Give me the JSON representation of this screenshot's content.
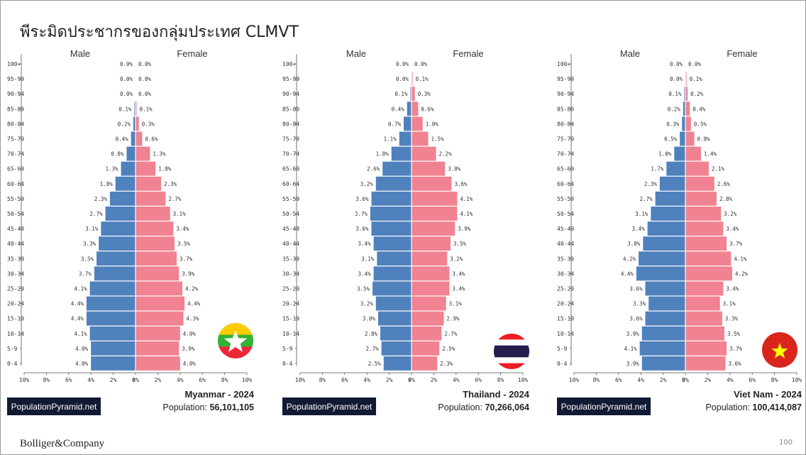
{
  "slide_title": "พีระมิดประชากรของกลุ่มประเทศ CLMVT",
  "footer": {
    "brand": "Bolliger&Company",
    "page_number": "100"
  },
  "colors": {
    "male": "#4f81bd",
    "female": "#f08291"
  },
  "chart_data": [
    {
      "type": "bar",
      "orientation": "horizontal",
      "subtype": "population-pyramid",
      "country": "Myanmar - 2024",
      "population_label": "Population:",
      "population": "56,101,105",
      "watermark": "PopulationPyramid.net",
      "flag": "myanmar-flag-icon",
      "left_label": "Male",
      "right_label": "Female",
      "categories": [
        "100+",
        "95-99",
        "90-94",
        "85-89",
        "80-84",
        "75-79",
        "70-74",
        "65-69",
        "60-64",
        "55-59",
        "50-54",
        "45-49",
        "40-44",
        "35-39",
        "30-34",
        "25-29",
        "20-24",
        "15-19",
        "10-14",
        "5-9",
        "0-4"
      ],
      "series": [
        {
          "name": "Male",
          "values": [
            0.0,
            0.0,
            0.0,
            0.1,
            0.2,
            0.4,
            0.8,
            1.3,
            1.8,
            2.3,
            2.7,
            3.1,
            3.3,
            3.5,
            3.7,
            4.1,
            4.4,
            4.4,
            4.1,
            4.0,
            4.0
          ]
        },
        {
          "name": "Female",
          "values": [
            0.0,
            0.0,
            0.0,
            0.1,
            0.3,
            0.6,
            1.3,
            1.8,
            2.3,
            2.7,
            3.1,
            3.4,
            3.5,
            3.7,
            3.9,
            4.2,
            4.4,
            4.3,
            4.0,
            3.9,
            4.0
          ]
        }
      ],
      "x_ticks": [
        "10%",
        "8%",
        "6%",
        "4%",
        "2%",
        "0%",
        "2%",
        "4%",
        "6%",
        "8%",
        "10%"
      ],
      "xlim": [
        -10,
        10
      ]
    },
    {
      "type": "bar",
      "orientation": "horizontal",
      "subtype": "population-pyramid",
      "country": "Thailand - 2024",
      "population_label": "Population:",
      "population": "70,266,064",
      "watermark": "PopulationPyramid.net",
      "flag": "thailand-flag-icon",
      "left_label": "Male",
      "right_label": "Female",
      "categories": [
        "100+",
        "95-99",
        "90-94",
        "85-89",
        "80-84",
        "75-79",
        "70-74",
        "65-69",
        "60-64",
        "55-59",
        "50-54",
        "45-49",
        "40-44",
        "35-39",
        "30-34",
        "25-29",
        "20-24",
        "15-19",
        "10-14",
        "5-9",
        "0-4"
      ],
      "series": [
        {
          "name": "Male",
          "values": [
            0.0,
            0.0,
            0.1,
            0.4,
            0.7,
            1.1,
            1.8,
            2.6,
            3.2,
            3.6,
            3.7,
            3.6,
            3.4,
            3.1,
            3.4,
            3.5,
            3.2,
            3.0,
            2.8,
            2.7,
            2.5
          ]
        },
        {
          "name": "Female",
          "values": [
            0.0,
            0.1,
            0.3,
            0.6,
            1.0,
            1.5,
            2.2,
            3.0,
            3.6,
            4.1,
            4.1,
            3.9,
            3.5,
            3.2,
            3.4,
            3.4,
            3.1,
            2.9,
            2.7,
            2.5,
            2.3
          ]
        }
      ],
      "x_ticks": [
        "10%",
        "8%",
        "6%",
        "4%",
        "2%",
        "0%",
        "2%",
        "4%",
        "6%",
        "8%",
        "10%"
      ],
      "xlim": [
        -10,
        10
      ]
    },
    {
      "type": "bar",
      "orientation": "horizontal",
      "subtype": "population-pyramid",
      "country": "Viet Nam - 2024",
      "population_label": "Population:",
      "population": "100,414,087",
      "watermark": "PopulationPyramid.net",
      "flag": "vietnam-flag-icon",
      "left_label": "Male",
      "right_label": "Female",
      "categories": [
        "100+",
        "95-99",
        "90-94",
        "85-89",
        "80-84",
        "75-79",
        "70-74",
        "65-69",
        "60-64",
        "55-59",
        "50-54",
        "45-49",
        "40-44",
        "35-39",
        "30-34",
        "25-29",
        "20-24",
        "15-19",
        "10-14",
        "5-9",
        "0-4"
      ],
      "series": [
        {
          "name": "Male",
          "values": [
            0.0,
            0.0,
            0.1,
            0.2,
            0.3,
            0.5,
            1.0,
            1.7,
            2.3,
            2.7,
            3.1,
            3.4,
            3.8,
            4.2,
            4.4,
            3.6,
            3.3,
            3.6,
            3.9,
            4.1,
            3.9
          ]
        },
        {
          "name": "Female",
          "values": [
            0.0,
            0.1,
            0.2,
            0.4,
            0.5,
            0.8,
            1.4,
            2.1,
            2.6,
            2.8,
            3.2,
            3.4,
            3.7,
            4.1,
            4.2,
            3.4,
            3.1,
            3.3,
            3.5,
            3.7,
            3.6
          ]
        }
      ],
      "x_ticks": [
        "10%",
        "8%",
        "6%",
        "4%",
        "2%",
        "0%",
        "2%",
        "4%",
        "6%",
        "8%",
        "10%"
      ],
      "xlim": [
        -10,
        10
      ]
    }
  ]
}
